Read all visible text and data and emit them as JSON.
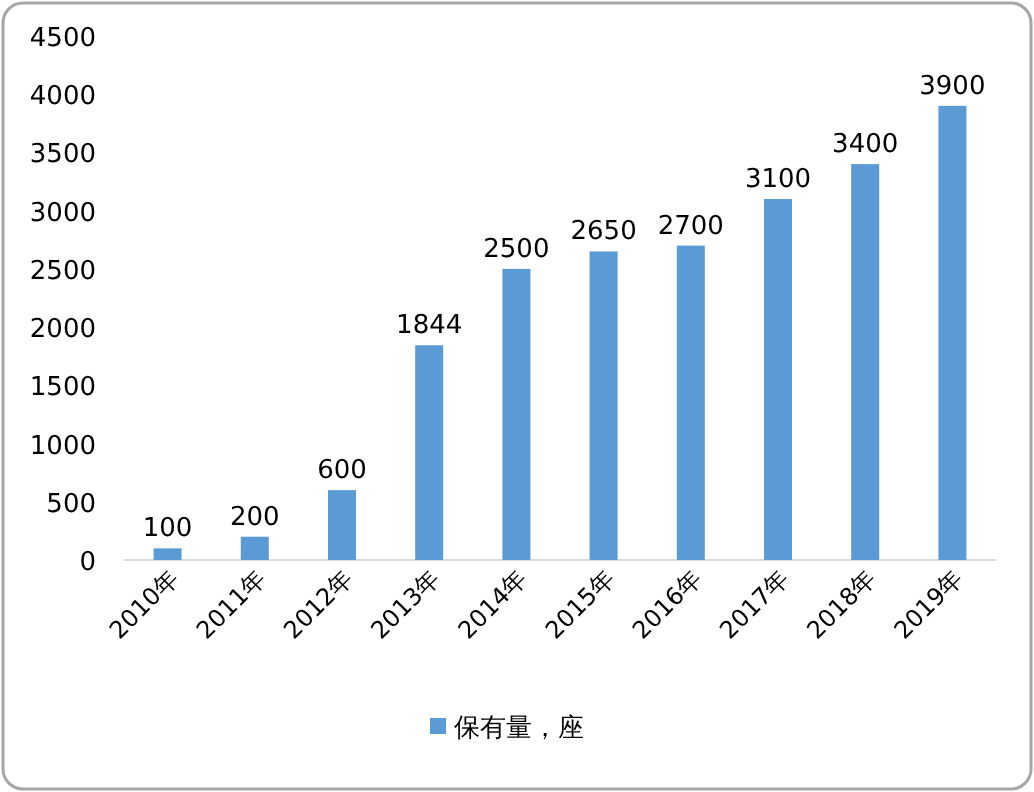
{
  "chart_data": {
    "type": "bar",
    "categories": [
      "2010年",
      "2011年",
      "2012年",
      "2013年",
      "2014年",
      "2015年",
      "2016年",
      "2017年",
      "2018年",
      "2019年"
    ],
    "series": [
      {
        "name": "保有量，座",
        "color": "#5b9bd5",
        "values": [
          100,
          200,
          600,
          1844,
          2500,
          2650,
          2700,
          3100,
          3400,
          3900
        ]
      }
    ],
    "ylim": [
      0,
      4500
    ],
    "yticks": [
      0,
      500,
      1000,
      1500,
      2000,
      2500,
      3000,
      3500,
      4000,
      4500
    ],
    "data_labels": true,
    "legend": "bottom",
    "grid": false
  }
}
